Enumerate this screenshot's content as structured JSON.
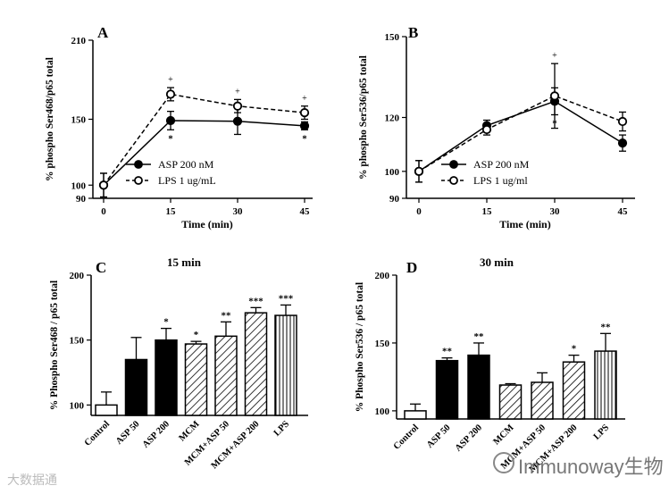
{
  "watermarks": {
    "left": "大数据通",
    "right": "Immunoway生物"
  },
  "chart_data": [
    {
      "panel": "A",
      "type": "line",
      "title": "",
      "xlabel": "Time (min)",
      "ylabel": "% phospho Ser468/p65 total",
      "x": [
        0,
        15,
        30,
        45
      ],
      "xticks": [
        "0",
        "15",
        "30",
        "45"
      ],
      "yticks": [
        90,
        100,
        150,
        210
      ],
      "ylim": [
        90,
        210
      ],
      "series": [
        {
          "name": "ASP 200 nM",
          "style": "solid-filled",
          "values": [
            100,
            149,
            148.5,
            145
          ],
          "err": [
            9,
            7,
            10,
            3
          ],
          "marks": [
            "",
            "*",
            "",
            "*"
          ]
        },
        {
          "name": "LPS 1 ug/mL",
          "style": "dashed-open",
          "values": [
            100,
            169,
            160,
            155
          ],
          "err": [
            9,
            5,
            5,
            5
          ],
          "marks": [
            "",
            "+",
            "+",
            "+"
          ]
        }
      ]
    },
    {
      "panel": "B",
      "type": "line",
      "title": "",
      "xlabel": "Time (min)",
      "ylabel": "% phospho Ser536/p65 total",
      "x": [
        0,
        15,
        30,
        45
      ],
      "xticks": [
        "0",
        "15",
        "30",
        "45"
      ],
      "yticks": [
        90,
        100,
        120,
        150
      ],
      "ylim": [
        90,
        150
      ],
      "series": [
        {
          "name": "ASP 200 nM",
          "style": "solid-filled",
          "values": [
            100,
            117,
            126,
            110.5
          ],
          "err": [
            4,
            2,
            5,
            3
          ],
          "marks": [
            "",
            "",
            "*",
            ""
          ]
        },
        {
          "name": "LPS 1 ug/ml",
          "style": "dashed-open",
          "values": [
            100,
            115.5,
            128,
            118.5
          ],
          "err": [
            4,
            2,
            12,
            3.5
          ],
          "marks": [
            "",
            "",
            "+",
            ""
          ]
        }
      ]
    },
    {
      "panel": "C",
      "type": "bar",
      "title": "15 min",
      "xlabel": "",
      "ylabel": "% Phospho Ser468 / p65 total",
      "categories": [
        "Control",
        "ASP 50",
        "ASP 200",
        "MCM",
        "MCM+ASP 50",
        "MCM+ASP 200",
        "LPS"
      ],
      "values": [
        100,
        135,
        150,
        147,
        153,
        171,
        169
      ],
      "err": [
        10,
        17,
        9,
        2,
        11,
        4,
        8
      ],
      "sig": [
        "",
        "",
        "*",
        "*",
        "**",
        "***",
        "***"
      ],
      "fills": [
        "white",
        "black",
        "black",
        "hatch",
        "hatch",
        "hatch",
        "vstripe"
      ],
      "yticks": [
        100,
        150,
        200
      ],
      "ylim": [
        92,
        200
      ]
    },
    {
      "panel": "D",
      "type": "bar",
      "title": "30 min",
      "xlabel": "",
      "ylabel": "% Phospho Ser536 / p65 total",
      "categories": [
        "Control",
        "ASP 50",
        "ASP 200",
        "MCM",
        "MCM+ASP 50",
        "MCM+ASP 200",
        "LPS"
      ],
      "values": [
        100,
        137,
        141,
        119,
        121,
        136,
        144
      ],
      "err": [
        5,
        2,
        9,
        1,
        7,
        5,
        13
      ],
      "sig": [
        "",
        "**",
        "**",
        "",
        "",
        "*",
        "**"
      ],
      "fills": [
        "white",
        "black",
        "black",
        "hatch",
        "hatch",
        "hatch",
        "vstripe"
      ],
      "yticks": [
        100,
        150,
        200
      ],
      "ylim": [
        94,
        200
      ]
    }
  ]
}
